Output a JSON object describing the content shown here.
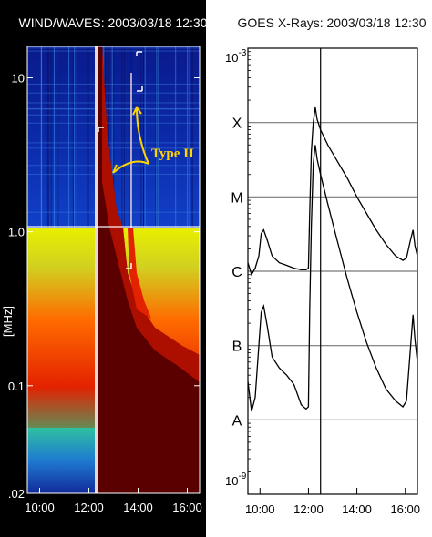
{
  "chart_data": [
    {
      "type": "heatmap",
      "title": "WIND/WAVES: 2003/03/18 12:30",
      "ylabel": "[MHz]",
      "y_scale": "log",
      "y_ticks": [
        "10",
        "1.0",
        "0.1",
        ".02"
      ],
      "y_tick_values": [
        10,
        1.0,
        0.1,
        0.02
      ],
      "ylim": [
        0.02,
        16
      ],
      "x_ticks": [
        "10:00",
        "12:00",
        "14:00",
        "16:00"
      ],
      "x_tick_values": [
        10,
        12,
        14,
        16
      ],
      "xlim": [
        9.5,
        16.5
      ],
      "annotation": "Type II",
      "colors": {
        "low": "#0a1a8c",
        "mid": "#21d46a",
        "high": "#ff2a00",
        "saturated": "#5a0000",
        "annotation": "#ffd400"
      }
    },
    {
      "type": "line",
      "title": "GOES X-Rays: 2003/03/18 12:30",
      "y_scale": "log",
      "y_exponent_top": "10",
      "y_exponent_top_sup": "-3",
      "y_exponent_bottom": "10",
      "y_exponent_bottom_sup": "-9",
      "class_labels": [
        "X",
        "M",
        "C",
        "B",
        "A"
      ],
      "class_values": [
        0.0001,
        1e-05,
        1e-06,
        1e-07,
        1e-08
      ],
      "ylim": [
        1e-09,
        0.001
      ],
      "x_ticks": [
        "10:00",
        "12:00",
        "14:00",
        "16:00"
      ],
      "x_tick_values": [
        10,
        12,
        14,
        16
      ],
      "xlim": [
        9.5,
        16.5
      ],
      "marker_time": 12.5,
      "series": [
        {
          "points": [
            [
              9.5,
              1.3e-06
            ],
            [
              9.65,
              9e-07
            ],
            [
              9.8,
              1.1e-06
            ],
            [
              9.95,
              1.6e-06
            ],
            [
              10.05,
              3.2e-06
            ],
            [
              10.15,
              3.6e-06
            ],
            [
              10.3,
              2.6e-06
            ],
            [
              10.5,
              1.6e-06
            ],
            [
              10.8,
              1.3e-06
            ],
            [
              11.1,
              1.2e-06
            ],
            [
              11.4,
              1.1e-06
            ],
            [
              11.7,
              1.05e-06
            ],
            [
              11.9,
              1.05e-06
            ],
            [
              12.0,
              1.1e-06
            ],
            [
              12.05,
              6e-06
            ],
            [
              12.12,
              4e-05
            ],
            [
              12.2,
              0.0001
            ],
            [
              12.28,
              0.00016
            ],
            [
              12.36,
              0.00011
            ],
            [
              12.5,
              8e-05
            ],
            [
              12.8,
              5e-05
            ],
            [
              13.2,
              3e-05
            ],
            [
              13.6,
              1.8e-05
            ],
            [
              14.0,
              1e-05
            ],
            [
              14.4,
              6e-06
            ],
            [
              14.8,
              3.6e-06
            ],
            [
              15.2,
              2.3e-06
            ],
            [
              15.6,
              1.6e-06
            ],
            [
              15.9,
              1.4e-06
            ],
            [
              16.05,
              1.5e-06
            ],
            [
              16.2,
              2.5e-06
            ],
            [
              16.32,
              3.6e-06
            ],
            [
              16.4,
              2.2e-06
            ],
            [
              16.5,
              1.6e-06
            ]
          ]
        },
        {
          "points": [
            [
              9.5,
              3.3e-08
            ],
            [
              9.65,
              1.3e-08
            ],
            [
              9.8,
              2e-08
            ],
            [
              9.95,
              1e-07
            ],
            [
              10.05,
              2.8e-07
            ],
            [
              10.15,
              3.4e-07
            ],
            [
              10.3,
              1.8e-07
            ],
            [
              10.5,
              7e-08
            ],
            [
              10.8,
              5e-08
            ],
            [
              11.1,
              4e-08
            ],
            [
              11.4,
              3e-08
            ],
            [
              11.7,
              1.6e-08
            ],
            [
              11.9,
              1.4e-08
            ],
            [
              12.0,
              1.5e-08
            ],
            [
              12.05,
              3e-07
            ],
            [
              12.12,
              4e-06
            ],
            [
              12.2,
              2.8e-05
            ],
            [
              12.28,
              5e-05
            ],
            [
              12.36,
              3.2e-05
            ],
            [
              12.5,
              2e-05
            ],
            [
              12.8,
              8e-06
            ],
            [
              13.2,
              2.5e-06
            ],
            [
              13.6,
              8e-07
            ],
            [
              14.0,
              2.8e-07
            ],
            [
              14.4,
              1.1e-07
            ],
            [
              14.8,
              5e-08
            ],
            [
              15.2,
              2.6e-08
            ],
            [
              15.6,
              1.8e-08
            ],
            [
              15.9,
              1.5e-08
            ],
            [
              16.05,
              1.8e-08
            ],
            [
              16.2,
              8e-08
            ],
            [
              16.32,
              2.6e-07
            ],
            [
              16.4,
              1.2e-07
            ],
            [
              16.5,
              6e-08
            ]
          ]
        }
      ]
    }
  ]
}
